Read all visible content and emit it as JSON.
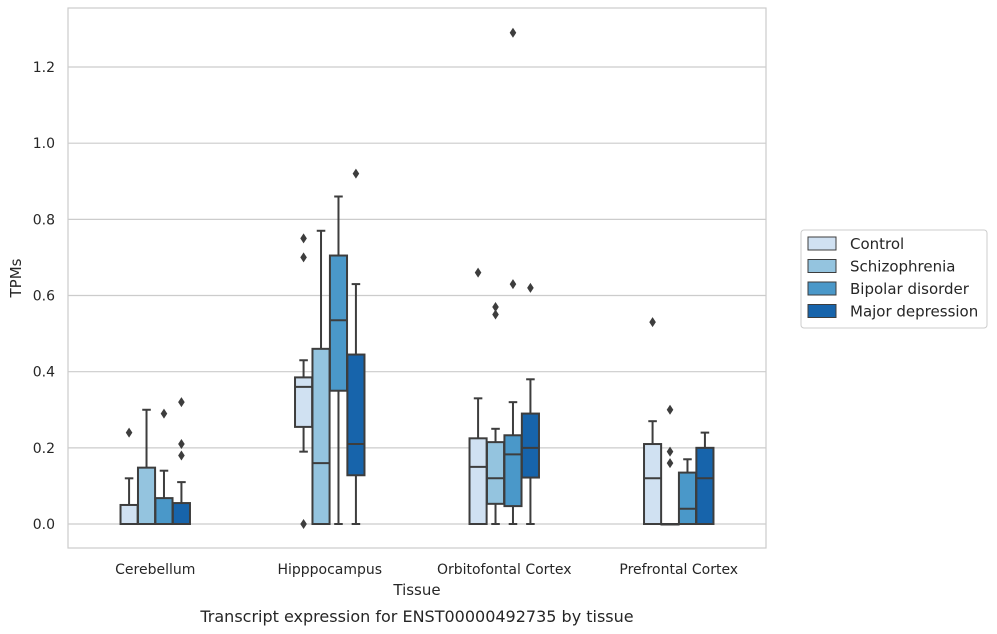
{
  "caption": "Transcript expression for ENST00000492735 by tissue",
  "chart_data": {
    "type": "box",
    "title": "",
    "xlabel": "Tissue",
    "ylabel": "TPMs",
    "categories": [
      "Cerebellum",
      "Hipppocampus",
      "Orbitofontal Cortex",
      "Prefrontal Cortex"
    ],
    "ylim": [
      -0.063,
      1.355
    ],
    "yticks": [
      0.0,
      0.2,
      0.4,
      0.6,
      0.8,
      1.0,
      1.2
    ],
    "ytick_labels": [
      "0.0",
      "0.2",
      "0.4",
      "0.6",
      "0.8",
      "1.0",
      "1.2"
    ],
    "grid": "horizontal",
    "legend_position": "right",
    "series": [
      {
        "name": "Control",
        "color": "#d0e1f2",
        "boxes": [
          {
            "whisker_low": 0.0,
            "q1": 0.0,
            "median": 0.0,
            "q3": 0.05,
            "whisker_high": 0.12,
            "outliers": [
              0.24
            ]
          },
          {
            "whisker_low": 0.19,
            "q1": 0.255,
            "median": 0.36,
            "q3": 0.385,
            "whisker_high": 0.43,
            "outliers": [
              0.0,
              0.7,
              0.75
            ]
          },
          {
            "whisker_low": 0.0,
            "q1": 0.0,
            "median": 0.15,
            "q3": 0.225,
            "whisker_high": 0.33,
            "outliers": [
              0.66
            ]
          },
          {
            "whisker_low": 0.0,
            "q1": 0.0,
            "median": 0.12,
            "q3": 0.21,
            "whisker_high": 0.27,
            "outliers": [
              0.53
            ]
          }
        ]
      },
      {
        "name": "Schizophrenia",
        "color": "#94c4df",
        "boxes": [
          {
            "whisker_low": 0.0,
            "q1": 0.0,
            "median": 0.0,
            "q3": 0.148,
            "whisker_high": 0.3,
            "outliers": []
          },
          {
            "whisker_low": 0.0,
            "q1": 0.0,
            "median": 0.16,
            "q3": 0.46,
            "whisker_high": 0.77,
            "outliers": []
          },
          {
            "whisker_low": 0.0,
            "q1": 0.053,
            "median": 0.12,
            "q3": 0.215,
            "whisker_high": 0.25,
            "outliers": [
              0.55,
              0.57
            ]
          },
          {
            "whisker_low": 0.0,
            "q1": 0.0,
            "median": 0.0,
            "q3": 0.0,
            "whisker_high": 0.0,
            "outliers": [
              0.16,
              0.19,
              0.3
            ]
          }
        ]
      },
      {
        "name": "Bipolar disorder",
        "color": "#4a98c9",
        "boxes": [
          {
            "whisker_low": 0.0,
            "q1": 0.0,
            "median": 0.0,
            "q3": 0.068,
            "whisker_high": 0.14,
            "outliers": [
              0.29
            ]
          },
          {
            "whisker_low": 0.0,
            "q1": 0.35,
            "median": 0.535,
            "q3": 0.705,
            "whisker_high": 0.86,
            "outliers": []
          },
          {
            "whisker_low": 0.0,
            "q1": 0.047,
            "median": 0.183,
            "q3": 0.233,
            "whisker_high": 0.32,
            "outliers": [
              0.63,
              1.29
            ]
          },
          {
            "whisker_low": 0.0,
            "q1": 0.0,
            "median": 0.04,
            "q3": 0.135,
            "whisker_high": 0.17,
            "outliers": []
          }
        ]
      },
      {
        "name": "Major depression",
        "color": "#1764ab",
        "boxes": [
          {
            "whisker_low": 0.0,
            "q1": 0.0,
            "median": 0.0,
            "q3": 0.055,
            "whisker_high": 0.11,
            "outliers": [
              0.18,
              0.21,
              0.32
            ]
          },
          {
            "whisker_low": 0.0,
            "q1": 0.128,
            "median": 0.21,
            "q3": 0.445,
            "whisker_high": 0.63,
            "outliers": [
              0.92
            ]
          },
          {
            "whisker_low": 0.0,
            "q1": 0.122,
            "median": 0.2,
            "q3": 0.29,
            "whisker_high": 0.38,
            "outliers": [
              0.62
            ]
          },
          {
            "whisker_low": 0.0,
            "q1": 0.0,
            "median": 0.12,
            "q3": 0.2,
            "whisker_high": 0.24,
            "outliers": []
          }
        ]
      }
    ]
  }
}
